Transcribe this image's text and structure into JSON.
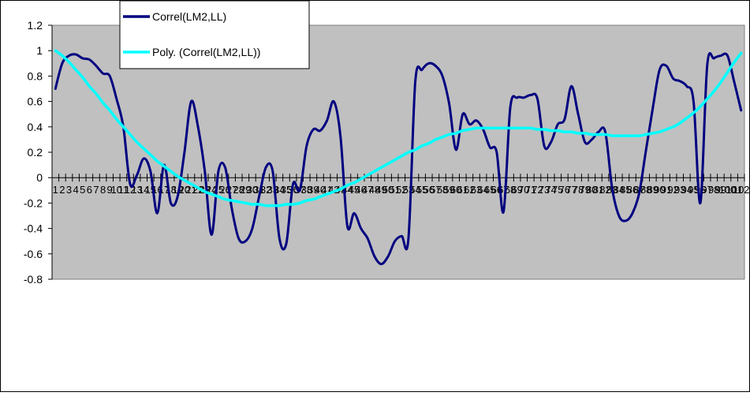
{
  "chart_data": {
    "type": "line",
    "title": "",
    "xlabel": "",
    "ylabel": "",
    "ylim": [
      -0.8,
      1.2
    ],
    "yticks": [
      -0.8,
      -0.6,
      -0.4,
      -0.2,
      0,
      0.2,
      0.4,
      0.6,
      0.8,
      1,
      1.2
    ],
    "grid": false,
    "legend_position": "top-left",
    "plot_background": "#C0C0C0",
    "x": [
      1,
      2,
      3,
      4,
      5,
      6,
      7,
      8,
      9,
      10,
      11,
      12,
      13,
      14,
      15,
      16,
      17,
      18,
      19,
      20,
      21,
      22,
      23,
      24,
      25,
      26,
      27,
      28,
      29,
      30,
      31,
      32,
      33,
      34,
      35,
      36,
      37,
      38,
      39,
      40,
      41,
      42,
      43,
      44,
      45,
      46,
      47,
      48,
      49,
      50,
      51,
      52,
      53,
      54,
      55,
      56,
      57,
      58,
      59,
      60,
      61,
      62,
      63,
      64,
      65,
      66,
      67,
      68,
      69,
      70,
      71,
      72,
      73,
      74,
      75,
      76,
      77,
      78,
      79,
      80,
      81,
      82,
      83,
      84,
      85,
      86,
      87,
      88,
      89,
      90,
      91,
      92,
      93,
      94,
      95,
      96,
      97,
      98,
      99,
      100,
      101,
      102
    ],
    "series": [
      {
        "name": "Correl(LM2,LL)",
        "color": "#000080",
        "values": [
          0.7,
          0.9,
          0.96,
          0.97,
          0.94,
          0.93,
          0.88,
          0.82,
          0.8,
          0.62,
          0.4,
          -0.05,
          0.02,
          0.15,
          0.05,
          -0.28,
          0.1,
          -0.2,
          -0.15,
          0.2,
          0.6,
          0.4,
          0.05,
          -0.45,
          0.05,
          0.08,
          -0.25,
          -0.48,
          -0.5,
          -0.4,
          -0.15,
          0.08,
          0.05,
          -0.48,
          -0.52,
          -0.05,
          -0.1,
          0.25,
          0.38,
          0.37,
          0.45,
          0.6,
          0.32,
          -0.38,
          -0.28,
          -0.4,
          -0.48,
          -0.62,
          -0.68,
          -0.62,
          -0.5,
          -0.46,
          -0.48,
          0.75,
          0.85,
          0.9,
          0.88,
          0.8,
          0.58,
          0.22,
          0.5,
          0.42,
          0.45,
          0.38,
          0.24,
          0.2,
          -0.27,
          0.55,
          0.63,
          0.63,
          0.65,
          0.62,
          0.25,
          0.28,
          0.42,
          0.46,
          0.72,
          0.5,
          0.28,
          0.3,
          0.36,
          0.36,
          -0.08,
          -0.3,
          -0.34,
          -0.28,
          -0.12,
          0.22,
          0.55,
          0.85,
          0.88,
          0.78,
          0.76,
          0.72,
          0.6,
          -0.2,
          0.88,
          0.94,
          0.96,
          0.96,
          0.75,
          0.53
        ]
      },
      {
        "name": "Poly. (Correl(LM2,LL))",
        "color": "#00FFFF",
        "values": [
          1.0,
          0.96,
          0.91,
          0.85,
          0.79,
          0.72,
          0.66,
          0.59,
          0.53,
          0.46,
          0.4,
          0.34,
          0.28,
          0.23,
          0.18,
          0.13,
          0.09,
          0.05,
          0.01,
          -0.02,
          -0.05,
          -0.08,
          -0.11,
          -0.13,
          -0.15,
          -0.17,
          -0.18,
          -0.19,
          -0.2,
          -0.21,
          -0.21,
          -0.22,
          -0.22,
          -0.22,
          -0.21,
          -0.21,
          -0.2,
          -0.18,
          -0.17,
          -0.15,
          -0.13,
          -0.11,
          -0.09,
          -0.06,
          -0.04,
          -0.01,
          0.02,
          0.05,
          0.08,
          0.11,
          0.14,
          0.17,
          0.2,
          0.22,
          0.25,
          0.27,
          0.3,
          0.32,
          0.34,
          0.35,
          0.37,
          0.38,
          0.39,
          0.39,
          0.39,
          0.39,
          0.39,
          0.39,
          0.39,
          0.39,
          0.39,
          0.38,
          0.38,
          0.37,
          0.37,
          0.36,
          0.36,
          0.35,
          0.35,
          0.34,
          0.34,
          0.34,
          0.33,
          0.33,
          0.33,
          0.33,
          0.33,
          0.34,
          0.35,
          0.36,
          0.38,
          0.4,
          0.43,
          0.47,
          0.51,
          0.56,
          0.62,
          0.68,
          0.75,
          0.83,
          0.91,
          0.98
        ]
      }
    ]
  }
}
